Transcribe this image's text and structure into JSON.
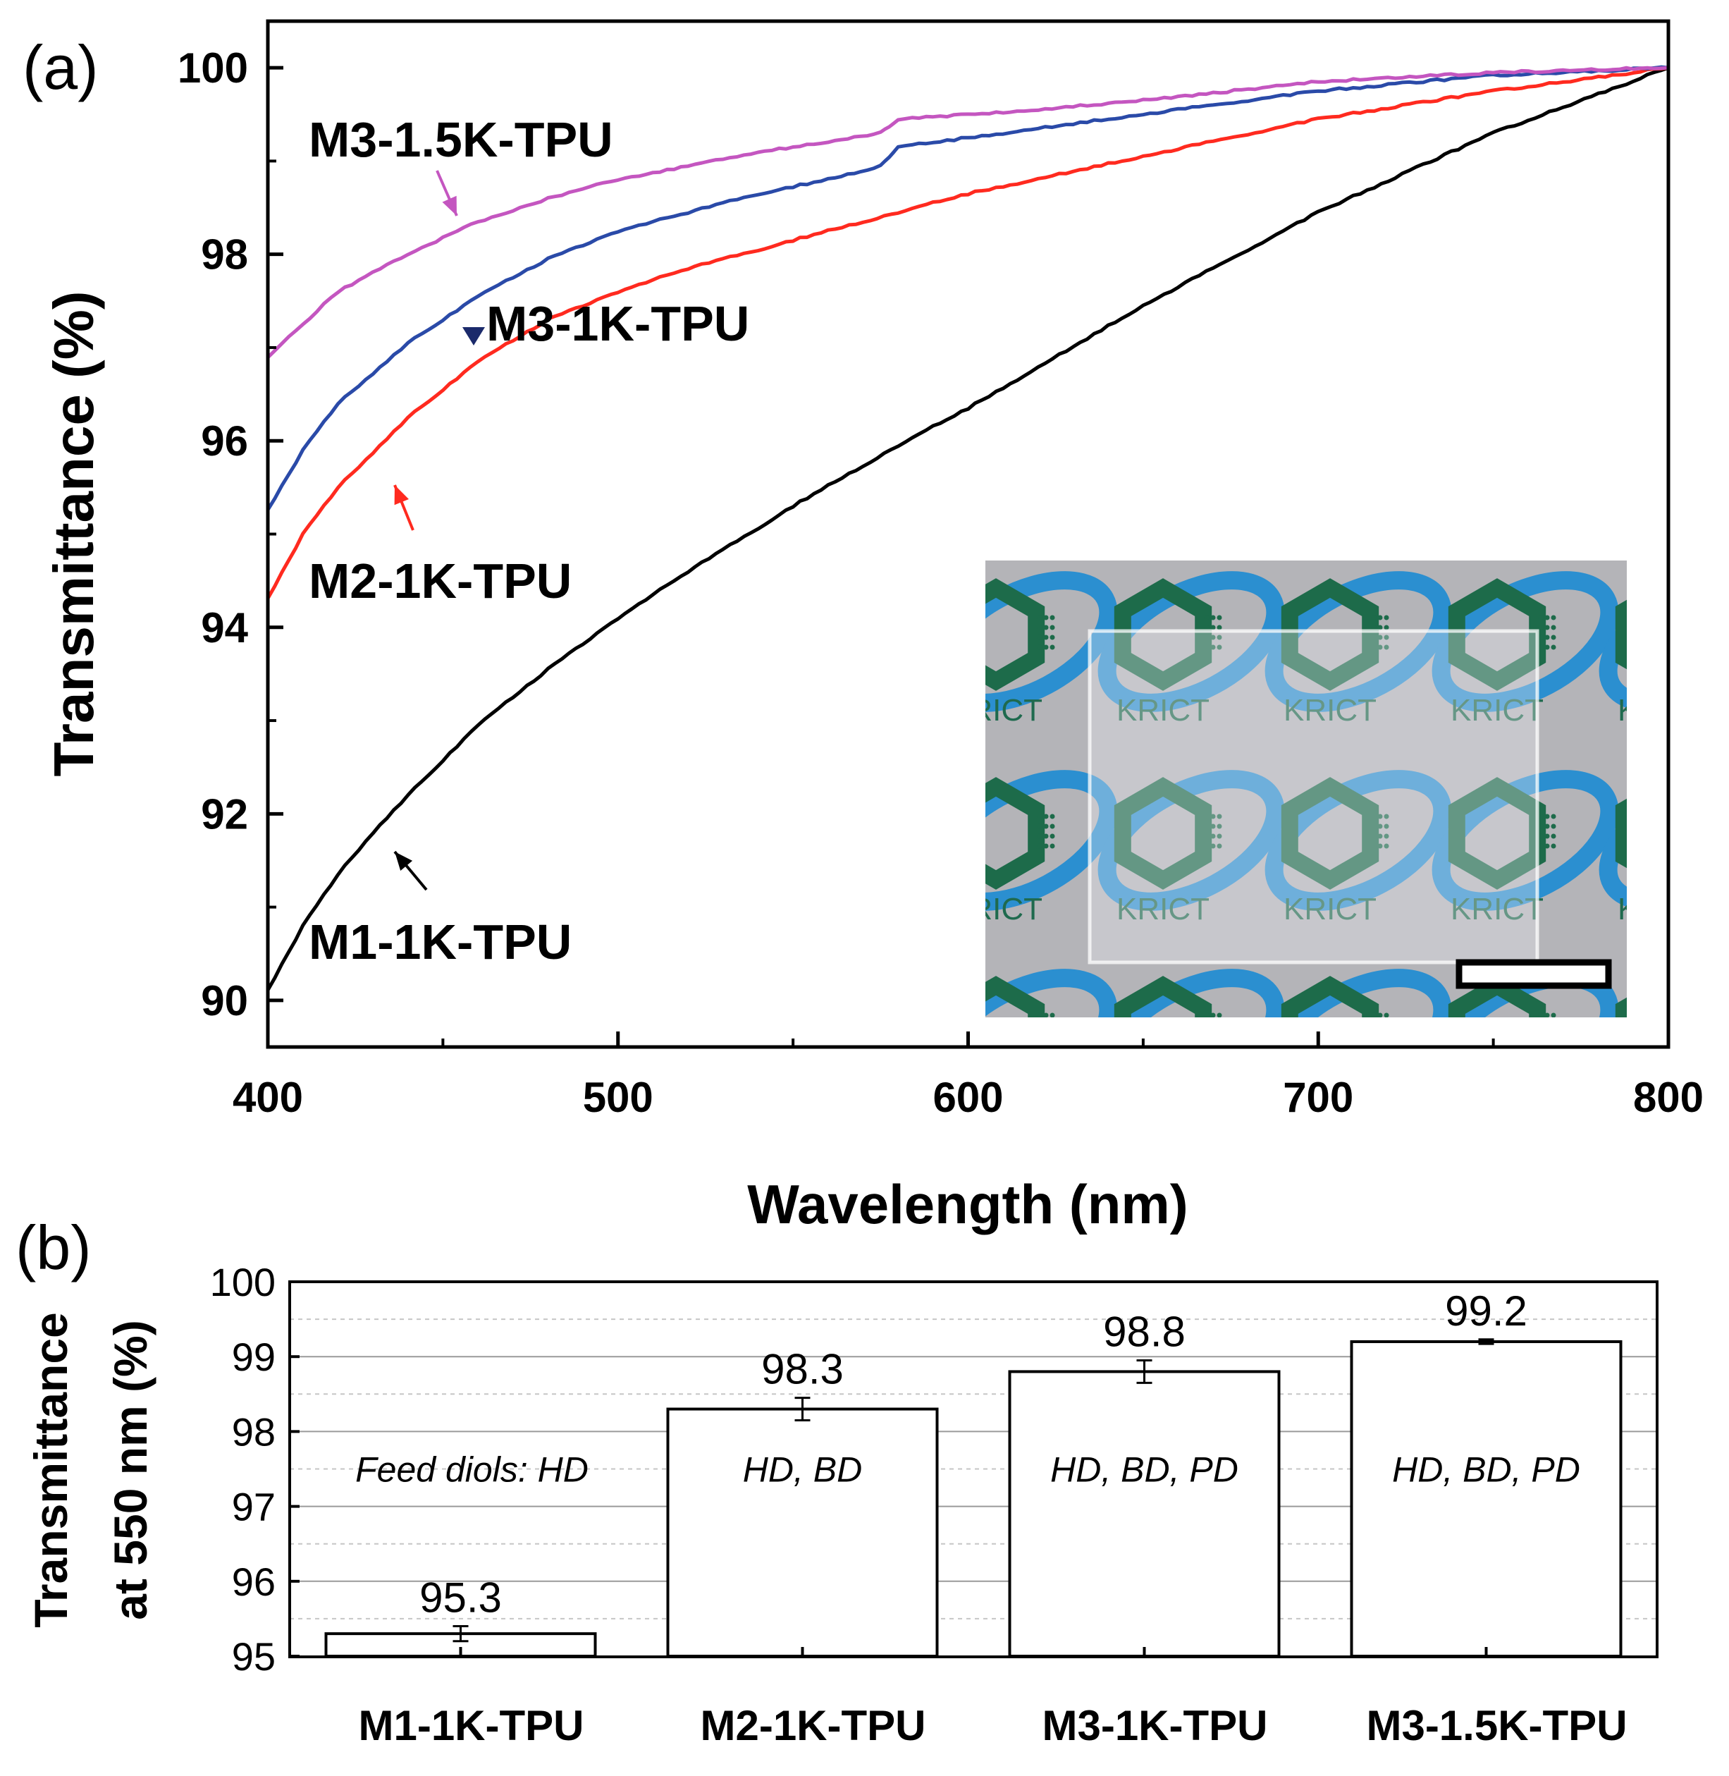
{
  "panel_a": {
    "label": "(a)"
  },
  "panel_b": {
    "label": "(b)"
  },
  "inset": {
    "logo_text": "KRICT",
    "colors": {
      "background": "#b4b4b8",
      "hexagon": "#1d6b4a",
      "ring": "#2b8fd0"
    }
  },
  "chart_data": [
    {
      "type": "line",
      "title": "",
      "xlabel": "Wavelength (nm)",
      "ylabel": "Transmittance (%)",
      "xlim": [
        400,
        800
      ],
      "ylim": [
        89.5,
        100.5
      ],
      "xticks": [
        400,
        500,
        600,
        700,
        800
      ],
      "yticks": [
        90,
        92,
        94,
        96,
        98,
        100
      ],
      "series": [
        {
          "name": "M3-1.5K-TPU",
          "color": "#c456c0",
          "x": [
            400,
            420,
            440,
            460,
            480,
            500,
            520,
            540,
            560,
            575,
            580,
            600,
            620,
            650,
            700,
            750,
            800
          ],
          "y": [
            96.9,
            97.6,
            98.0,
            98.35,
            98.6,
            98.8,
            98.95,
            99.1,
            99.2,
            99.3,
            99.45,
            99.5,
            99.55,
            99.65,
            99.85,
            99.95,
            100.0
          ]
        },
        {
          "name": "M3-1K-TPU",
          "color": "#2a4aa8",
          "x": [
            400,
            410,
            420,
            440,
            460,
            480,
            500,
            520,
            540,
            560,
            575,
            580,
            600,
            650,
            700,
            750,
            800
          ],
          "y": [
            95.25,
            95.9,
            96.4,
            97.05,
            97.55,
            97.95,
            98.25,
            98.45,
            98.65,
            98.8,
            98.95,
            99.15,
            99.25,
            99.5,
            99.75,
            99.92,
            100.0
          ]
        },
        {
          "name": "M2-1K-TPU",
          "color": "#ff2a1f",
          "x": [
            400,
            410,
            420,
            440,
            460,
            480,
            500,
            520,
            550,
            580,
            600,
            650,
            700,
            750,
            800
          ],
          "y": [
            94.3,
            95.0,
            95.5,
            96.25,
            96.85,
            97.3,
            97.6,
            97.85,
            98.15,
            98.45,
            98.65,
            99.05,
            99.45,
            99.75,
            100.0
          ]
        },
        {
          "name": "M1-1K-TPU",
          "color": "#000000",
          "x": [
            400,
            410,
            420,
            430,
            440,
            460,
            480,
            500,
            520,
            550,
            580,
            600,
            650,
            700,
            750,
            800
          ],
          "y": [
            90.1,
            90.8,
            91.35,
            91.8,
            92.2,
            92.95,
            93.55,
            94.1,
            94.6,
            95.3,
            95.95,
            96.35,
            97.45,
            98.45,
            99.3,
            100.0
          ]
        }
      ],
      "annotations": [
        {
          "text": "M3-1.5K-TPU",
          "series": "M3-1.5K-TPU"
        },
        {
          "text": "M3-1K-TPU",
          "series": "M3-1K-TPU"
        },
        {
          "text": "M2-1K-TPU",
          "series": "M2-1K-TPU"
        },
        {
          "text": "M1-1K-TPU",
          "series": "M1-1K-TPU"
        }
      ],
      "grid": false
    },
    {
      "type": "bar",
      "title": "",
      "xlabel": "",
      "ylabel_line1": "Transmittance",
      "ylabel_line2": "at 550 nm (%)",
      "ylim": [
        95,
        100
      ],
      "yticks": [
        95,
        96,
        97,
        98,
        99,
        100
      ],
      "grid": true,
      "categories": [
        "M1-1K-TPU",
        "M2-1K-TPU",
        "M3-1K-TPU",
        "M3-1.5K-TPU"
      ],
      "values": [
        95.3,
        98.3,
        98.8,
        99.2
      ],
      "value_labels": [
        "95.3",
        "98.3",
        "98.8",
        "99.2"
      ],
      "errors": [
        0.1,
        0.15,
        0.15,
        0.03
      ],
      "diol_labels": [
        "Feed diols: HD",
        "HD, BD",
        "HD, BD, PD",
        "HD, BD, PD"
      ]
    }
  ]
}
